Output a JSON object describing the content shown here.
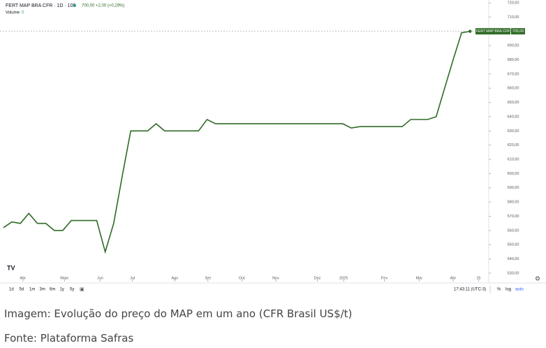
{
  "chart_data": {
    "type": "line",
    "title": "FERT MAP BRA CFR · 1D · 100",
    "subtitle": "700,00 +2,00 (+0,29%)",
    "volume_label": "Volume",
    "volume_value": 0,
    "series": [
      {
        "name": "FERT MAP BRA CFR",
        "color": "#2f6b26",
        "last_label": "700,00",
        "x": [
          0,
          1,
          2,
          3,
          4,
          5,
          6,
          7,
          8,
          9,
          10,
          11,
          12,
          13,
          14,
          15,
          16,
          17,
          18,
          19,
          20,
          21,
          22,
          23,
          24,
          25,
          26,
          27,
          28,
          29,
          30,
          31,
          32,
          33,
          34,
          35,
          36,
          37,
          38,
          39,
          40,
          41,
          42,
          43,
          44,
          45,
          46,
          47,
          48,
          49,
          50,
          51,
          52,
          53,
          54,
          55
        ],
        "values": [
          562,
          566,
          565,
          572,
          565,
          565,
          560,
          560,
          567,
          567,
          567,
          567,
          545,
          565,
          598,
          630,
          630,
          630,
          635,
          630,
          630,
          630,
          630,
          630,
          638,
          635,
          635,
          635,
          635,
          635,
          635,
          635,
          635,
          635,
          635,
          635,
          635,
          635,
          635,
          635,
          635,
          632,
          633,
          633,
          633,
          633,
          633,
          633,
          638,
          638,
          638,
          640,
          660,
          680,
          699,
          700
        ]
      }
    ],
    "xlim": [
      -0.4,
      57.2
    ],
    "xticks": [
      {
        "value": 2.3,
        "label": "Abr"
      },
      {
        "value": 7.2,
        "label": "Maio"
      },
      {
        "value": 11.4,
        "label": "Jun"
      },
      {
        "value": 15.2,
        "label": "Jul"
      },
      {
        "value": 20.2,
        "label": "Ago"
      },
      {
        "value": 24.1,
        "label": "Set"
      },
      {
        "value": 28.1,
        "label": "Out"
      },
      {
        "value": 32.1,
        "label": "Nov"
      },
      {
        "value": 37,
        "label": "Dez"
      },
      {
        "value": 40.1,
        "label": "2025"
      },
      {
        "value": 44.9,
        "label": "Fev"
      },
      {
        "value": 49,
        "label": "Mar"
      },
      {
        "value": 53,
        "label": "Abr"
      },
      {
        "value": 56,
        "label": "15"
      }
    ],
    "ylim": [
      528,
      722
    ],
    "yticks": [
      {
        "value": 530,
        "label": "530,00"
      },
      {
        "value": 540,
        "label": "540,00"
      },
      {
        "value": 550,
        "label": "550,00"
      },
      {
        "value": 560,
        "label": "560,00"
      },
      {
        "value": 570,
        "label": "570,00"
      },
      {
        "value": 580,
        "label": "580,00"
      },
      {
        "value": 590,
        "label": "590,00"
      },
      {
        "value": 600,
        "label": "600,00"
      },
      {
        "value": 610,
        "label": "610,00"
      },
      {
        "value": 620,
        "label": "620,00"
      },
      {
        "value": 630,
        "label": "630,00"
      },
      {
        "value": 640,
        "label": "640,00"
      },
      {
        "value": 650,
        "label": "650,00"
      },
      {
        "value": 660,
        "label": "660,00"
      },
      {
        "value": 670,
        "label": "670,00"
      },
      {
        "value": 680,
        "label": "680,00"
      },
      {
        "value": 690,
        "label": "690,00"
      },
      {
        "value": 700,
        "label": "700,00"
      },
      {
        "value": 710,
        "label": "710,00"
      },
      {
        "value": 720,
        "label": "720,00"
      }
    ],
    "grid": false
  },
  "toolbar": {
    "ranges": [
      "1d",
      "5d",
      "1m",
      "3m",
      "6m",
      "1y",
      "5y"
    ],
    "time": "17:43:11 (UTC-3)",
    "percent": "%",
    "log": "log",
    "auto": "auto"
  },
  "caption": [
    "Imagem: Evolução do preço do MAP em um ano (CFR Brasil US$/t)",
    "Fonte: Plataforma Safras"
  ]
}
